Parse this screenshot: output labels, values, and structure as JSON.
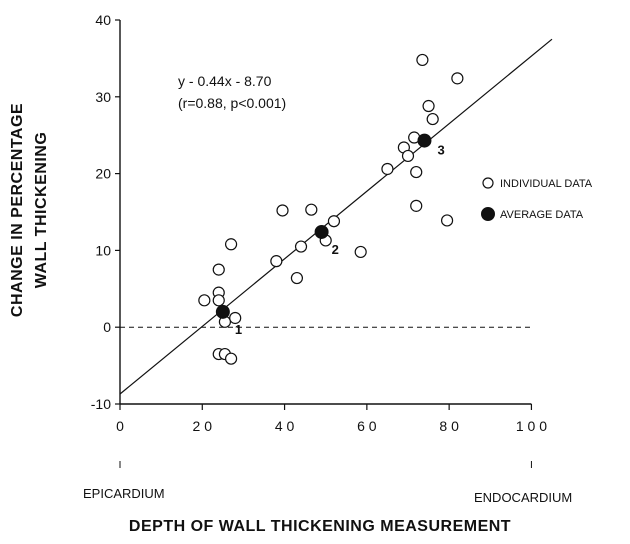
{
  "chart_data": {
    "type": "scatter",
    "xlabel": "DEPTH OF WALL THICKENING MEASUREMENT",
    "ylabel_lines": [
      "CHANGE IN PERCENTAGE",
      "WALL THICKENING"
    ],
    "xlim": [
      0,
      105
    ],
    "ylim": [
      -10,
      40
    ],
    "x_ticks": [
      0,
      20,
      40,
      60,
      80,
      100
    ],
    "x_tick_labels": [
      "0",
      "2 0",
      "4 0",
      "6 0",
      "8 0",
      "1 0 0"
    ],
    "y_ticks": [
      -10,
      0,
      10,
      20,
      30,
      40
    ],
    "y_tick_labels": [
      "-10",
      "0",
      "10",
      "20",
      "30",
      "40"
    ],
    "end_labels": {
      "left": "EPICARDIUM",
      "right": "ENDOCARDIUM"
    },
    "equation": "y - 0.44x - 8.70",
    "stats": "(r=0.88,  p<0.001)",
    "regression": {
      "slope": 0.44,
      "intercept": -8.7
    },
    "reference_line_y": 0,
    "legend": {
      "individual": "INDIVIDUAL DATA",
      "average": "AVERAGE DATA"
    },
    "series": [
      {
        "name": "INDIVIDUAL DATA",
        "marker": "open-circle",
        "points": [
          [
            20.5,
            3.5
          ],
          [
            24,
            4.5
          ],
          [
            24,
            7.5
          ],
          [
            24,
            3.5
          ],
          [
            25.5,
            0.7
          ],
          [
            27,
            10.8
          ],
          [
            28,
            1.2
          ],
          [
            24,
            -3.5
          ],
          [
            25.5,
            -3.5
          ],
          [
            27,
            -4.1
          ],
          [
            38,
            8.6
          ],
          [
            39.5,
            15.2
          ],
          [
            43,
            6.4
          ],
          [
            44,
            10.5
          ],
          [
            46.5,
            15.3
          ],
          [
            50,
            11.3
          ],
          [
            52,
            13.8
          ],
          [
            58.5,
            9.8
          ],
          [
            65,
            20.6
          ],
          [
            69,
            23.4
          ],
          [
            70,
            22.3
          ],
          [
            71.5,
            24.7
          ],
          [
            72,
            20.2
          ],
          [
            72,
            15.8
          ],
          [
            73.5,
            34.8
          ],
          [
            75,
            28.8
          ],
          [
            76,
            27.1
          ],
          [
            79.5,
            13.9
          ],
          [
            82,
            32.4
          ]
        ]
      },
      {
        "name": "AVERAGE DATA",
        "marker": "filled-circle",
        "points": [
          [
            25,
            2
          ],
          [
            49,
            12.4
          ],
          [
            74,
            24.3
          ]
        ],
        "point_labels": [
          "1",
          "2",
          "3"
        ]
      }
    ]
  }
}
